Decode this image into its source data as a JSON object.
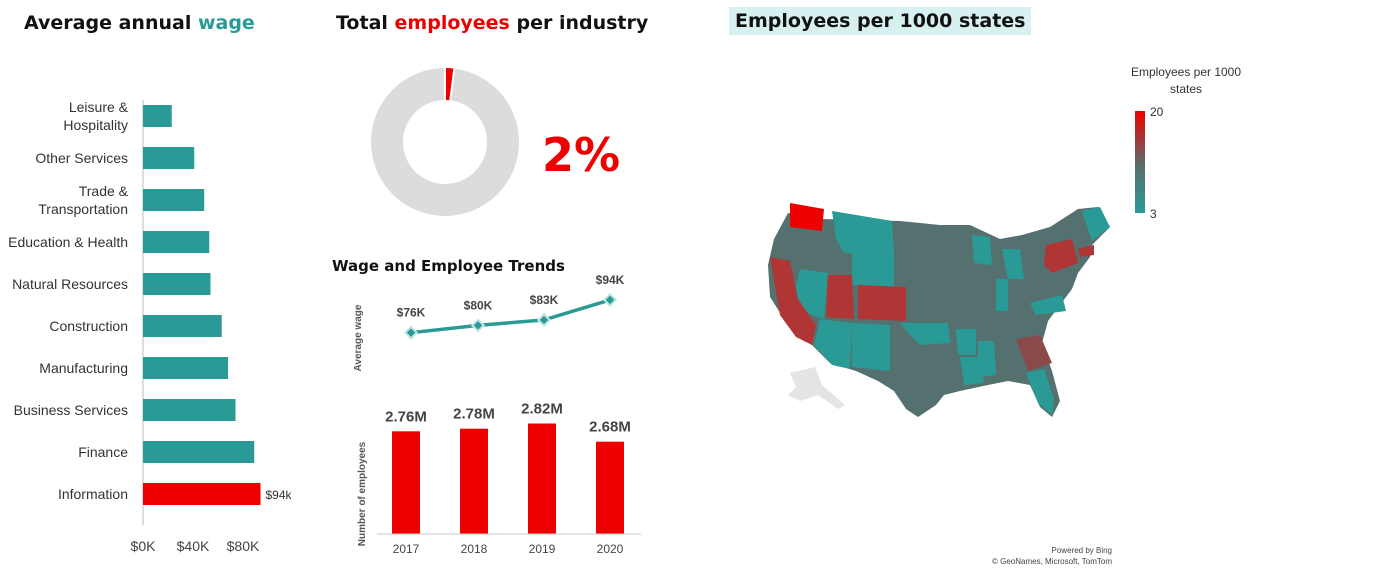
{
  "titles": {
    "wage_pre": "Average annual ",
    "wage_accent": "wage",
    "emp_pre": "Total ",
    "emp_accent": "employees",
    "emp_post": " per industry",
    "map": "Employees per 1000 states"
  },
  "donut": {
    "percent": 2,
    "label": "2%"
  },
  "trends": {
    "title": "Wage and Employee Trends"
  },
  "legend": {
    "title": "Employees per 1000 states",
    "max": "20",
    "min": "3"
  },
  "attribution": {
    "line1": "Powered by Bing",
    "line2": "© GeoNames, Microsoft, TomTom"
  },
  "colors": {
    "teal": "#2a9a97",
    "red": "#ee0000",
    "gray": "#dcdcdc",
    "map_dark": "#55716f",
    "map_red": "#b03535"
  },
  "chart_data": [
    {
      "type": "bar",
      "orientation": "horizontal",
      "title": "Average annual wage",
      "categories": [
        "Leisure & Hospitality",
        "Other Services",
        "Trade & Transportation",
        "Education & Health",
        "Natural Resources",
        "Construction",
        "Manufacturing",
        "Business Services",
        "Finance",
        "Information"
      ],
      "category_lines": [
        [
          "Leisure &",
          "Hospitality"
        ],
        [
          "Other Services"
        ],
        [
          "Trade &",
          "Transportation"
        ],
        [
          "Education & Health"
        ],
        [
          "Natural Resources"
        ],
        [
          "Construction"
        ],
        [
          "Manufacturing"
        ],
        [
          "Business Services"
        ],
        [
          "Finance"
        ],
        [
          "Information"
        ]
      ],
      "values": [
        23,
        41,
        49,
        53,
        54,
        63,
        68,
        74,
        89,
        94
      ],
      "highlight": "Information",
      "data_labels": {
        "Information": "$94k"
      },
      "xticks": [
        "$0K",
        "$40K",
        "$80K"
      ],
      "xlim": [
        0,
        100
      ]
    },
    {
      "type": "pie",
      "title": "Total employees per industry",
      "slices": [
        {
          "value": 2
        },
        {
          "value": 98
        }
      ]
    },
    {
      "type": "line",
      "ylabel": "Average wage",
      "x": [
        "2017",
        "2018",
        "2019",
        "2020"
      ],
      "values": [
        76,
        80,
        83,
        94
      ],
      "data_labels": [
        "$76K",
        "$80K",
        "$83K",
        "$94K"
      ]
    },
    {
      "type": "bar",
      "ylabel": "Number of  employees",
      "categories": [
        "2017",
        "2018",
        "2019",
        "2020"
      ],
      "values": [
        2.76,
        2.78,
        2.82,
        2.68
      ],
      "data_labels": [
        "2.76M",
        "2.78M",
        "2.82M",
        "2.68M"
      ]
    }
  ]
}
